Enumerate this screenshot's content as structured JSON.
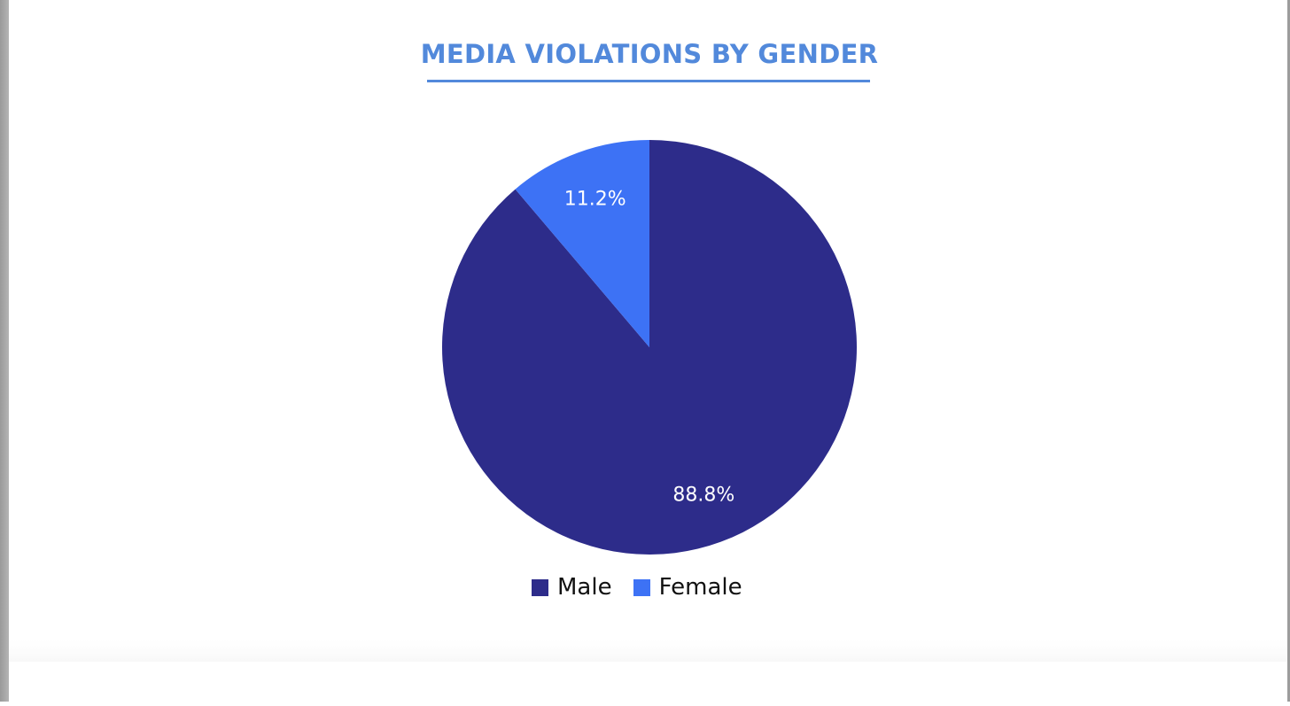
{
  "title": "MEDIA VIOLATIONS BY GENDER",
  "colors": {
    "title": "#5289db",
    "male": "#2d2c8a",
    "female": "#3d72f5",
    "label_text": "#ffffff"
  },
  "legend": {
    "items": [
      {
        "label": "Male",
        "color": "#2d2c8a"
      },
      {
        "label": "Female",
        "color": "#3d72f5"
      }
    ]
  },
  "slice_labels": {
    "male": "88.8%",
    "female": "11.2%"
  },
  "chart_data": {
    "type": "pie",
    "title": "MEDIA VIOLATIONS BY GENDER",
    "categories": [
      "Male",
      "Female"
    ],
    "values": [
      88.8,
      11.2
    ],
    "unit": "%",
    "colors": [
      "#2d2c8a",
      "#3d72f5"
    ],
    "data_labels": [
      "88.8%",
      "11.2%"
    ],
    "legend_position": "bottom",
    "start_angle": "12 o'clock",
    "direction": "Female slice counterclockwise from top, Male clockwise from top"
  }
}
